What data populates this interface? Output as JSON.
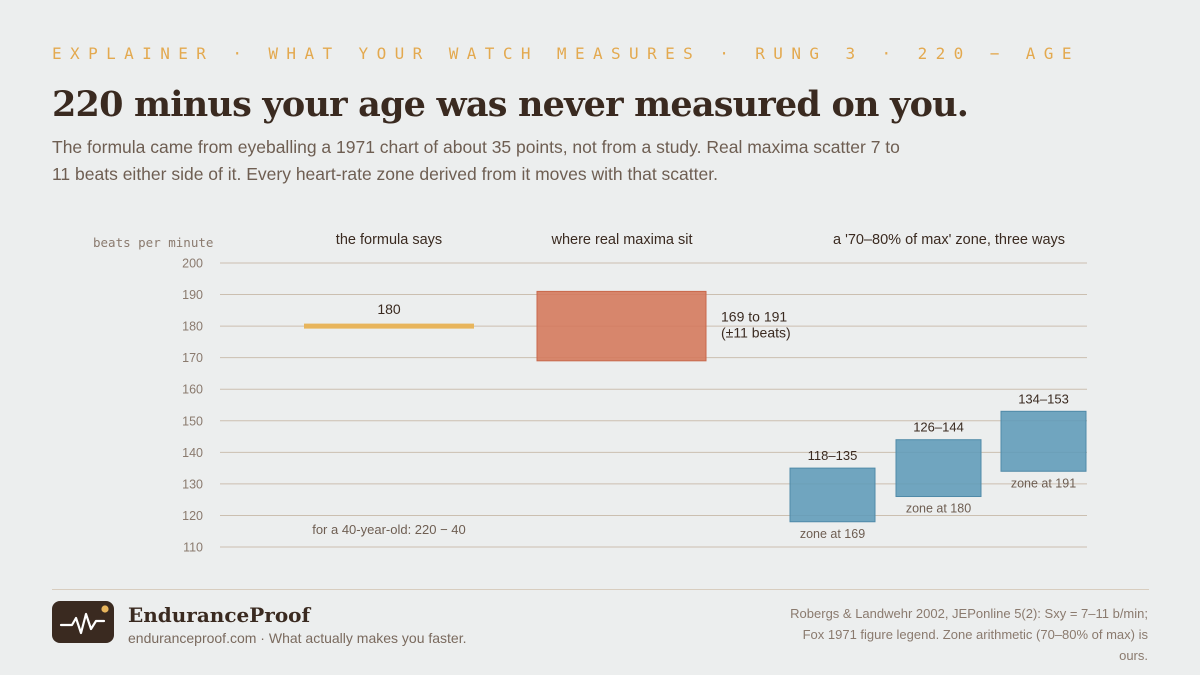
{
  "kicker": "EXPLAINER · WHAT YOUR WATCH MEASURES · RUNG 3 · 220 − AGE",
  "headline": "220 minus your age was never measured on you.",
  "dek": "The formula came from eyeballing a 1971 chart of about 35 points, not from a study. Real maxima scatter 7 to 11 beats either side of it. Every heart-rate zone derived from it moves with that scatter.",
  "colors": {
    "formula": "#e8b55c",
    "range": "#d4775a",
    "zone": "#5f9bb8",
    "gridline": "#cbbfb0",
    "kicker": "#e3a94f"
  },
  "chart_data": {
    "type": "bar",
    "ylabel": "beats per minute",
    "ylim": [
      110,
      200
    ],
    "yticks": [
      110,
      120,
      130,
      140,
      150,
      160,
      170,
      180,
      190,
      200
    ],
    "groups": [
      {
        "heading": "the formula says",
        "note": "for a 40-year-old: 220 − 40"
      },
      {
        "heading": "where real maxima sit",
        "note": ""
      },
      {
        "heading": "a '70–80% of max' zone, three ways",
        "note": ""
      }
    ],
    "formula": {
      "value": 180,
      "label": "180"
    },
    "range": {
      "low": 169,
      "high": 191,
      "label_line1": "169 to 191",
      "label_line2": "(±11 beats)"
    },
    "zones": [
      {
        "low": 118,
        "high": 135,
        "range_label": "118–135",
        "caption": "zone at 169"
      },
      {
        "low": 126,
        "high": 144,
        "range_label": "126–144",
        "caption": "zone at 180"
      },
      {
        "low": 134,
        "high": 153,
        "range_label": "134–153",
        "caption": "zone at 191"
      }
    ]
  },
  "brand": {
    "name": "EnduranceProof",
    "tagline": "enduranceproof.com · What actually makes you faster.",
    "logo_icon": "heartbeat-icon"
  },
  "source": "Robergs & Landwehr 2002, JEPonline 5(2): Sxy = 7–11 b/min; Fox 1971 figure legend. Zone arithmetic (70–80% of max) is ours."
}
